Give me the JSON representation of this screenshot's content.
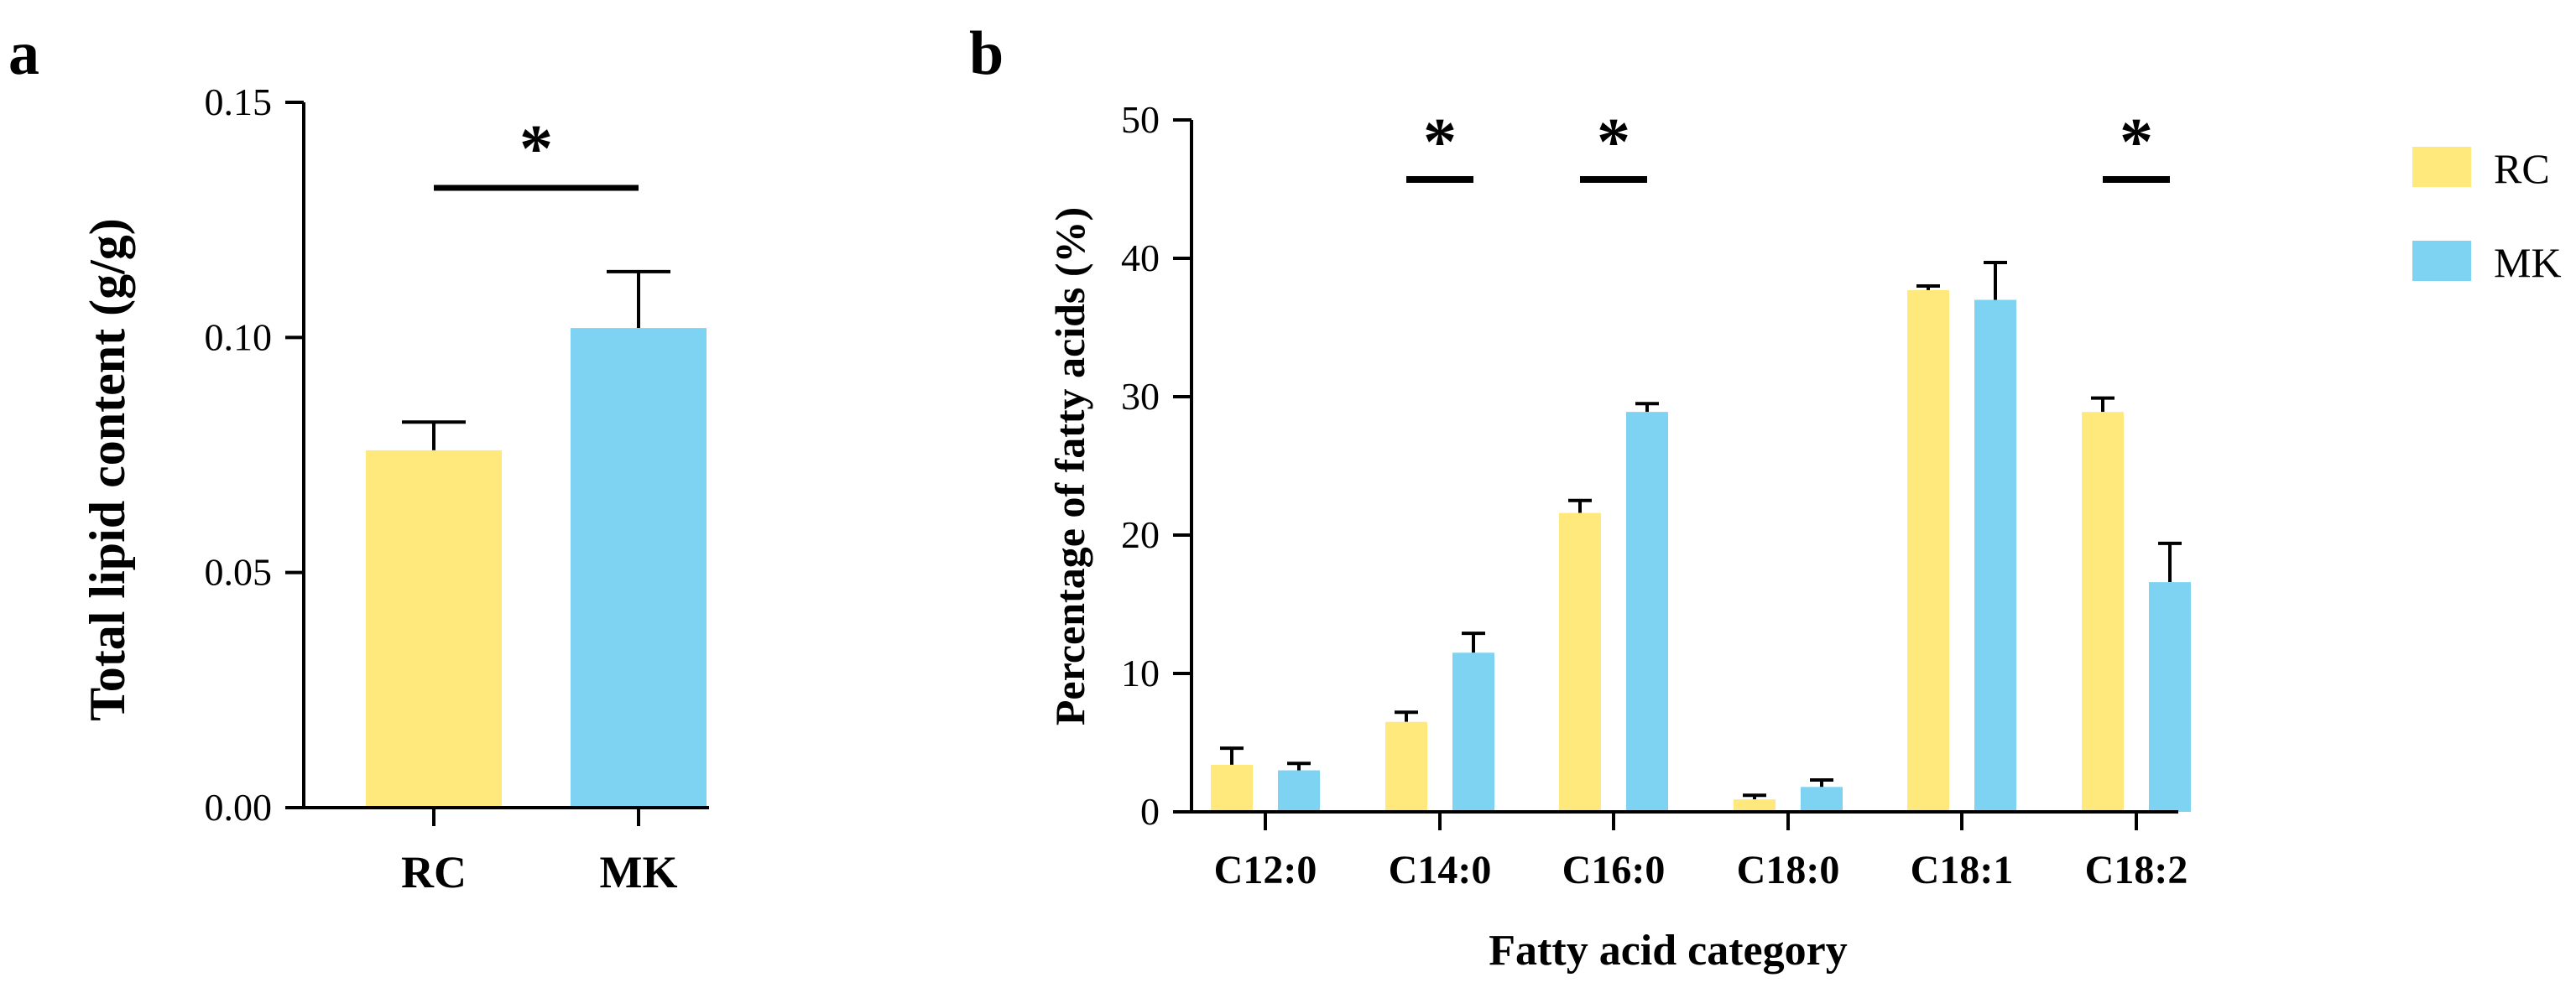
{
  "colors": {
    "rc": "#FFE87C",
    "mk": "#7FD3F2",
    "axis": "#000000"
  },
  "chart_data": [
    {
      "type": "bar",
      "panel_label": "a",
      "categories": [
        "RC",
        "MK"
      ],
      "values": [
        0.076,
        0.102
      ],
      "errors": [
        0.006,
        0.012
      ],
      "ylabel": "Total lipid content (g/g)",
      "ylim": [
        0,
        0.15
      ],
      "yticks": [
        0.0,
        0.05,
        0.1,
        0.15
      ],
      "ytick_labels": [
        "0.00",
        "0.05",
        "0.10",
        "0.15"
      ],
      "significance": [
        {
          "between": [
            "RC",
            "MK"
          ],
          "label": "*"
        }
      ]
    },
    {
      "type": "bar",
      "panel_label": "b",
      "categories": [
        "C12:0",
        "C14:0",
        "C16:0",
        "C18:0",
        "C18:1",
        "C18:2"
      ],
      "series": [
        {
          "name": "RC",
          "values": [
            3.4,
            6.5,
            21.6,
            0.9,
            37.7,
            28.9
          ],
          "errors": [
            1.2,
            0.7,
            0.9,
            0.3,
            0.3,
            1.0
          ]
        },
        {
          "name": "MK",
          "values": [
            3.0,
            11.5,
            28.9,
            1.8,
            37.0,
            16.6
          ],
          "errors": [
            0.5,
            1.4,
            0.6,
            0.5,
            2.7,
            2.8
          ]
        }
      ],
      "xlabel": "Fatty acid category",
      "ylabel": "Percentage of fatty acids (%)",
      "ylim": [
        0,
        50
      ],
      "yticks": [
        0,
        10,
        20,
        30,
        40,
        50
      ],
      "ytick_labels": [
        "0",
        "10",
        "20",
        "30",
        "40",
        "50"
      ],
      "significance": [
        {
          "category": "C14:0",
          "label": "*"
        },
        {
          "category": "C16:0",
          "label": "*"
        },
        {
          "category": "C18:2",
          "label": "*"
        }
      ],
      "legend": {
        "position": "top-right",
        "entries": [
          "RC",
          "MK"
        ]
      }
    }
  ]
}
